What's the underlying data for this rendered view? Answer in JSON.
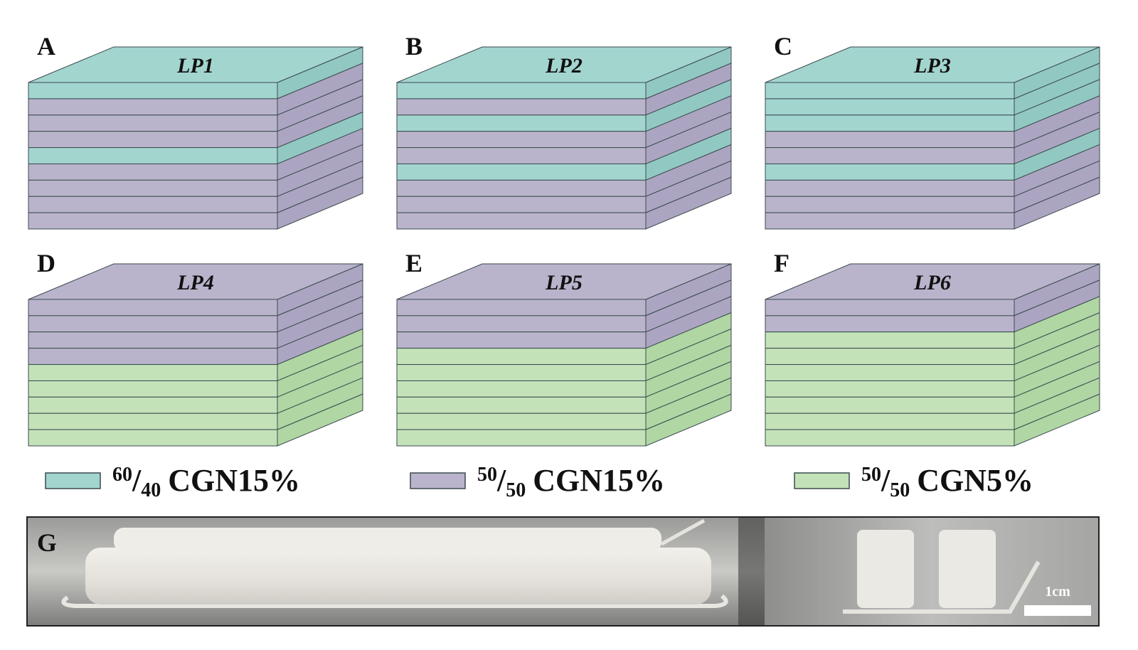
{
  "panels": [
    {
      "letter": "A",
      "label": "LP1",
      "layers": [
        0,
        1,
        1,
        1,
        0,
        1,
        1,
        1,
        1
      ]
    },
    {
      "letter": "B",
      "label": "LP2",
      "layers": [
        0,
        1,
        0,
        1,
        1,
        0,
        1,
        1,
        1
      ]
    },
    {
      "letter": "C",
      "label": "LP3",
      "layers": [
        0,
        0,
        0,
        1,
        1,
        0,
        1,
        1,
        1
      ]
    },
    {
      "letter": "D",
      "label": "LP4",
      "layers": [
        1,
        1,
        1,
        1,
        2,
        2,
        2,
        2,
        2
      ]
    },
    {
      "letter": "E",
      "label": "LP5",
      "layers": [
        1,
        1,
        1,
        2,
        2,
        2,
        2,
        2,
        2
      ]
    },
    {
      "letter": "F",
      "label": "LP6",
      "layers": [
        1,
        1,
        2,
        2,
        2,
        2,
        2,
        2,
        2
      ]
    }
  ],
  "legend": [
    {
      "sup": "60",
      "sub": "40",
      "text": "CGN15%",
      "color": "#a3d5cf",
      "side": "#92c8c2"
    },
    {
      "sup": "50",
      "sub": "50",
      "text": "CGN15%",
      "color": "#b9b4cc",
      "side": "#aba5c1"
    },
    {
      "sup": "50",
      "sub": "50",
      "text": "CGN5%",
      "color": "#c3e2b8",
      "side": "#b0d6a3"
    }
  ],
  "photo": {
    "letter": "G",
    "scale": "1cm"
  }
}
